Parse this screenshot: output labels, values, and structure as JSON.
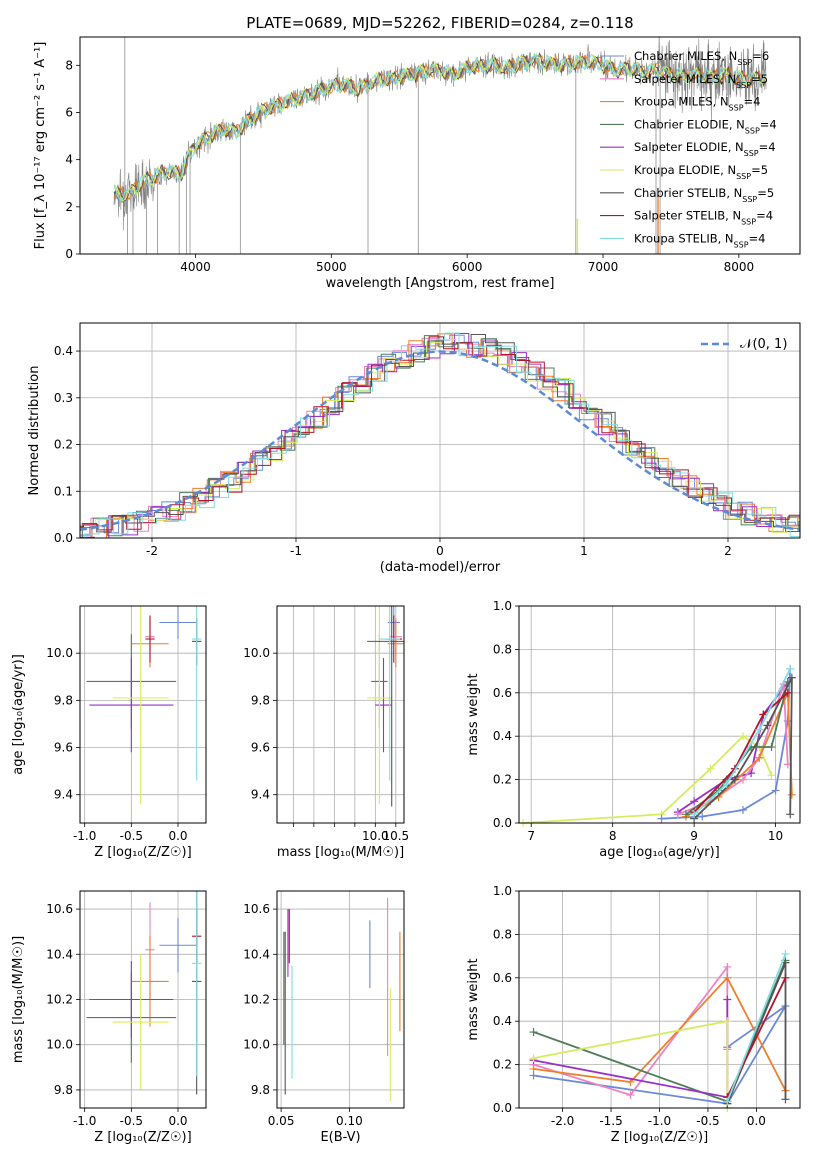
{
  "title": "PLATE=0689, MJD=52262, FIBERID=0284, z=0.118",
  "palette": {
    "Chabrier MILES": "#6a8ad8",
    "Salpeter MILES": "#ee82c0",
    "Kroupa MILES": "#ee7f2c",
    "Chabrier ELODIE": "#4f7d5a",
    "Salpeter ELODIE": "#9a2fc8",
    "Kroupa ELODIE": "#d6ec5f",
    "Chabrier STELIB": "#555555",
    "Salpeter STELIB": "#b0152a",
    "Kroupa STELIB": "#80dce0",
    "normal": "#5b8ad6",
    "data": "#808080"
  },
  "chart_data": [
    {
      "id": "spectrum",
      "type": "line",
      "xlabel": "wavelength [Angstrom, rest frame]",
      "ylabel": "Flux [f_λ 10⁻¹⁷ erg cm⁻² s⁻¹ A⁻¹]",
      "xlim": [
        3150,
        8450
      ],
      "ylim": [
        0,
        9.2
      ],
      "xticks": [
        4000,
        5000,
        6000,
        7000,
        8000
      ],
      "yticks": [
        0,
        2,
        4,
        6,
        8
      ],
      "legend_position": "top-right",
      "legend": [
        {
          "name": "Chabrier MILES",
          "nssp": "=6"
        },
        {
          "name": "Salpeter MILES",
          "nssp": "=5"
        },
        {
          "name": "Kroupa MILES",
          "nssp": "=4"
        },
        {
          "name": "Chabrier ELODIE",
          "nssp": "=4"
        },
        {
          "name": "Salpeter ELODIE",
          "nssp": "=4"
        },
        {
          "name": "Kroupa ELODIE",
          "nssp": "=5"
        },
        {
          "name": "Chabrier STELIB",
          "nssp": "=5"
        },
        {
          "name": "Salpeter STELIB",
          "nssp": "=4"
        },
        {
          "name": "Kroupa STELIB",
          "nssp": "=4"
        }
      ],
      "continuum": [
        [
          3400,
          2.6
        ],
        [
          3500,
          2.5
        ],
        [
          3600,
          3.0
        ],
        [
          3700,
          3.3
        ],
        [
          3800,
          3.5
        ],
        [
          3900,
          3.4
        ],
        [
          3950,
          4.2
        ],
        [
          4000,
          4.6
        ],
        [
          4100,
          5.0
        ],
        [
          4200,
          5.3
        ],
        [
          4300,
          5.2
        ],
        [
          4400,
          5.7
        ],
        [
          4500,
          6.1
        ],
        [
          4600,
          6.3
        ],
        [
          4700,
          6.5
        ],
        [
          4800,
          6.7
        ],
        [
          4900,
          6.9
        ],
        [
          5000,
          7.1
        ],
        [
          5100,
          7.2
        ],
        [
          5200,
          7.0
        ],
        [
          5300,
          7.3
        ],
        [
          5400,
          7.4
        ],
        [
          5500,
          7.5
        ],
        [
          5600,
          7.6
        ],
        [
          5700,
          7.8
        ],
        [
          5800,
          7.8
        ],
        [
          5900,
          7.6
        ],
        [
          6000,
          7.9
        ],
        [
          6100,
          8.0
        ],
        [
          6200,
          8.0
        ],
        [
          6300,
          7.9
        ],
        [
          6400,
          8.1
        ],
        [
          6500,
          8.2
        ],
        [
          6600,
          8.1
        ],
        [
          6700,
          8.0
        ],
        [
          6800,
          8.1
        ],
        [
          6900,
          8.2
        ],
        [
          7000,
          8.0
        ],
        [
          7100,
          7.8
        ],
        [
          7200,
          7.9
        ],
        [
          7300,
          7.7
        ],
        [
          7400,
          7.8
        ],
        [
          7500,
          7.6
        ],
        [
          7600,
          7.5
        ],
        [
          7700,
          7.6
        ],
        [
          7800,
          7.5
        ],
        [
          7900,
          7.6
        ],
        [
          8000,
          7.5
        ],
        [
          8100,
          7.4
        ],
        [
          8200,
          7.5
        ]
      ]
    },
    {
      "id": "residuals",
      "type": "bar",
      "xlabel": "(data-model)/error",
      "ylabel": "Normed distribution",
      "xlim": [
        -2.5,
        2.5
      ],
      "ylim": [
        0,
        0.46
      ],
      "xticks": [
        -2,
        -1,
        0,
        1,
        2
      ],
      "yticks": [
        0.0,
        0.1,
        0.2,
        0.3,
        0.4
      ],
      "legend": [
        {
          "name": "𝒩(0, 1)"
        }
      ],
      "legend_position": "top-right"
    },
    {
      "id": "age-vs-Z",
      "type": "scatter",
      "xlabel": "Z [log₁₀(Z/Z☉)]",
      "ylabel": "age [log₁₀(age/yr)]",
      "xlim": [
        -1.05,
        0.3
      ],
      "ylim": [
        9.28,
        10.2
      ],
      "xticks": [
        -1.0,
        -0.5,
        0.0
      ],
      "yticks": [
        9.4,
        9.6,
        9.8,
        10.0
      ],
      "points": [
        {
          "model": "Chabrier MILES",
          "x": 0.0,
          "xerr": 0.2,
          "y": 10.13,
          "yerr": 0.07
        },
        {
          "model": "Salpeter MILES",
          "x": -0.3,
          "xerr": 0.05,
          "y": 10.07,
          "yerr": 0.08
        },
        {
          "model": "Kroupa MILES",
          "x": -0.3,
          "xerr": 0.2,
          "y": 10.04,
          "yerr": 0.1
        },
        {
          "model": "Chabrier ELODIE",
          "x": -0.5,
          "xerr": 0.48,
          "y": 9.88,
          "yerr": 0.2
        },
        {
          "model": "Salpeter ELODIE",
          "x": -0.5,
          "xerr": 0.45,
          "y": 9.78,
          "yerr": 0.2
        },
        {
          "model": "Kroupa ELODIE",
          "x": -0.4,
          "xerr": 0.3,
          "y": 9.81,
          "yerr": 0.45
        },
        {
          "model": "Chabrier STELIB",
          "x": 0.2,
          "xerr": 0.05,
          "y": 10.05,
          "yerr": 0.1
        },
        {
          "model": "Salpeter STELIB",
          "x": -0.3,
          "xerr": 0.05,
          "y": 10.06,
          "yerr": 0.1
        },
        {
          "model": "Kroupa STELIB",
          "x": 0.2,
          "xerr": 0.05,
          "y": 10.06,
          "yerr": 0.6
        }
      ]
    },
    {
      "id": "age-vs-mass",
      "type": "scatter",
      "xlabel": "mass [log₁₀(M/M☉)]",
      "xlim": [
        7.6,
        10.7
      ],
      "ylim": [
        9.28,
        10.2
      ],
      "xticks": [
        8.0,
        8.5,
        9.0,
        9.5,
        10.0,
        10.5
      ],
      "yticks": [
        9.4,
        9.6,
        9.8,
        10.0
      ],
      "xtick_labels": [
        "10.0",
        "10.5"
      ],
      "xtick_label_values": [
        10.0,
        10.5
      ],
      "points": [
        {
          "model": "Chabrier MILES",
          "x": 10.45,
          "xerr": 0.15,
          "y": 10.13,
          "yerr": 0.07
        },
        {
          "model": "Salpeter MILES",
          "x": 10.5,
          "xerr": 0.15,
          "y": 10.07,
          "yerr": 0.08
        },
        {
          "model": "Kroupa MILES",
          "x": 10.5,
          "xerr": 0.2,
          "y": 10.04,
          "yerr": 0.1
        },
        {
          "model": "Chabrier ELODIE",
          "x": 10.1,
          "xerr": 0.2,
          "y": 9.88,
          "yerr": 0.2
        },
        {
          "model": "Salpeter ELODIE",
          "x": 10.2,
          "xerr": 0.2,
          "y": 9.78,
          "yerr": 0.2
        },
        {
          "model": "Kroupa ELODIE",
          "x": 10.1,
          "xerr": 0.3,
          "y": 9.81,
          "yerr": 0.45
        },
        {
          "model": "Chabrier STELIB",
          "x": 10.4,
          "xerr": 0.6,
          "y": 10.05,
          "yerr": 0.7
        },
        {
          "model": "Salpeter STELIB",
          "x": 10.45,
          "xerr": 0.2,
          "y": 10.06,
          "yerr": 0.1
        },
        {
          "model": "Kroupa STELIB",
          "x": 10.35,
          "xerr": 0.25,
          "y": 10.06,
          "yerr": 0.6
        }
      ]
    },
    {
      "id": "mw-vs-age",
      "type": "line",
      "xlabel": "age [log₁₀(age/yr)]",
      "ylabel": "mass weight",
      "xlim": [
        6.85,
        10.3
      ],
      "ylim": [
        0,
        1.0
      ],
      "xticks": [
        7,
        8,
        9,
        10
      ],
      "yticks": [
        0.0,
        0.2,
        0.4,
        0.6,
        0.8,
        1.0
      ],
      "series": [
        {
          "model": "Kroupa ELODIE",
          "x": [
            6.9,
            8.6,
            9.2,
            9.6,
            9.8,
            9.95
          ],
          "y": [
            0.0,
            0.04,
            0.25,
            0.4,
            0.35,
            0.22
          ]
        },
        {
          "model": "Chabrier MILES",
          "x": [
            8.6,
            9.1,
            9.6,
            10.0,
            10.15,
            10.18
          ],
          "y": [
            0.02,
            0.03,
            0.06,
            0.15,
            0.47,
            0.71
          ]
        },
        {
          "model": "Salpeter ELODIE",
          "x": [
            8.8,
            9.0,
            9.4,
            9.7,
            9.85,
            10.15
          ],
          "y": [
            0.05,
            0.1,
            0.2,
            0.23,
            0.5,
            0.65
          ]
        },
        {
          "model": "Salpeter MILES",
          "x": [
            8.8,
            9.2,
            9.6,
            9.8,
            10.1,
            10.15
          ],
          "y": [
            0.04,
            0.1,
            0.2,
            0.3,
            0.64,
            0.27
          ]
        },
        {
          "model": "Kroupa MILES",
          "x": [
            8.9,
            9.3,
            9.8,
            10.15,
            10.2
          ],
          "y": [
            0.03,
            0.12,
            0.3,
            0.6,
            0.13
          ]
        },
        {
          "model": "Chabrier ELODIE",
          "x": [
            8.9,
            9.3,
            9.7,
            9.95,
            10.15
          ],
          "y": [
            0.04,
            0.15,
            0.35,
            0.35,
            0.65
          ]
        },
        {
          "model": "Chabrier STELIB",
          "x": [
            9.0,
            9.5,
            9.9,
            10.2,
            10.18
          ],
          "y": [
            0.02,
            0.2,
            0.45,
            0.67,
            0.04
          ]
        },
        {
          "model": "Salpeter STELIB",
          "x": [
            9.0,
            9.5,
            9.85,
            10.15
          ],
          "y": [
            0.05,
            0.25,
            0.5,
            0.6
          ]
        },
        {
          "model": "Kroupa STELIB",
          "x": [
            9.0,
            9.4,
            9.8,
            10.18
          ],
          "y": [
            0.04,
            0.18,
            0.43,
            0.71
          ]
        }
      ]
    },
    {
      "id": "mass-vs-Z",
      "type": "scatter",
      "xlabel": "Z [log₁₀(Z/Z☉)]",
      "ylabel": "mass [log₁₀(M/M☉)]",
      "xlim": [
        -1.05,
        0.3
      ],
      "ylim": [
        9.72,
        10.68
      ],
      "xticks": [
        -1.0,
        -0.5,
        0.0
      ],
      "yticks": [
        9.8,
        10.0,
        10.2,
        10.4,
        10.6
      ],
      "points": [
        {
          "model": "Chabrier MILES",
          "x": 0.0,
          "xerr": 0.2,
          "y": 10.44,
          "yerr": 0.12
        },
        {
          "model": "Salpeter MILES",
          "x": -0.3,
          "xerr": 0.05,
          "y": 10.42,
          "yerr": 0.21
        },
        {
          "model": "Kroupa MILES",
          "x": -0.3,
          "xerr": 0.2,
          "y": 10.28,
          "yerr": 0.2
        },
        {
          "model": "Chabrier ELODIE",
          "x": -0.5,
          "xerr": 0.48,
          "y": 10.12,
          "yerr": 0.2
        },
        {
          "model": "Salpeter ELODIE",
          "x": -0.5,
          "xerr": 0.45,
          "y": 10.2,
          "yerr": 0.17
        },
        {
          "model": "Kroupa ELODIE",
          "x": -0.4,
          "xerr": 0.3,
          "y": 10.1,
          "yerr": 0.3
        },
        {
          "model": "Chabrier STELIB",
          "x": 0.2,
          "xerr": 0.05,
          "y": 10.28,
          "yerr": 0.5
        },
        {
          "model": "Salpeter STELIB",
          "x": 0.2,
          "xerr": 0.05,
          "y": 10.48,
          "yerr": 0.12
        },
        {
          "model": "Kroupa STELIB",
          "x": 0.2,
          "xerr": 0.05,
          "y": 10.36,
          "yerr": 0.5
        }
      ]
    },
    {
      "id": "mass-vs-ebv",
      "type": "scatter",
      "xlabel": "E(B-V)",
      "xlim": [
        0.047,
        0.14
      ],
      "ylim": [
        9.72,
        10.68
      ],
      "xticks": [
        0.05,
        0.1
      ],
      "yticks": [
        9.8,
        10.0,
        10.2,
        10.4,
        10.6
      ],
      "points": [
        {
          "model": "Chabrier MILES",
          "x": 0.115,
          "y": 10.4,
          "yerr": 0.15
        },
        {
          "model": "Salpeter MILES",
          "x": 0.128,
          "y": 10.3,
          "yerr": 0.35
        },
        {
          "model": "Kroupa MILES",
          "x": 0.137,
          "y": 10.28,
          "yerr": 0.22
        },
        {
          "model": "Chabrier ELODIE",
          "x": 0.052,
          "y": 10.25,
          "yerr": 0.25
        },
        {
          "model": "Salpeter ELODIE",
          "x": 0.055,
          "y": 10.45,
          "yerr": 0.15
        },
        {
          "model": "Kroupa ELODIE",
          "x": 0.13,
          "y": 10.0,
          "yerr": 0.25
        },
        {
          "model": "Chabrier STELIB",
          "x": 0.053,
          "y": 10.14,
          "yerr": 0.36
        },
        {
          "model": "Salpeter STELIB",
          "x": 0.056,
          "y": 10.48,
          "yerr": 0.12
        },
        {
          "model": "Kroupa STELIB",
          "x": 0.058,
          "y": 10.1,
          "yerr": 0.25
        }
      ]
    },
    {
      "id": "mw-vs-Z",
      "type": "line",
      "xlabel": "Z [log₁₀(Z/Z☉)]",
      "ylabel": "mass weight",
      "xlim": [
        -2.45,
        0.45
      ],
      "ylim": [
        0,
        1.0
      ],
      "xticks": [
        -2.0,
        -1.5,
        -1.0,
        -0.5,
        0.0
      ],
      "yticks": [
        0.0,
        0.2,
        0.4,
        0.6,
        0.8,
        1.0
      ],
      "series": [
        {
          "model": "Chabrier MILES",
          "x": [
            -2.3,
            -0.3,
            0.3,
            -0.3
          ],
          "y": [
            0.15,
            0.02,
            0.47,
            0.28
          ]
        },
        {
          "model": "Salpeter MILES",
          "x": [
            -2.3,
            -1.3,
            -0.3,
            -0.3
          ],
          "y": [
            0.2,
            0.06,
            0.65,
            0.27
          ]
        },
        {
          "model": "Kroupa MILES",
          "x": [
            -2.3,
            -1.3,
            -0.3,
            0.3
          ],
          "y": [
            0.18,
            0.12,
            0.6,
            0.08
          ]
        },
        {
          "model": "Chabrier ELODIE",
          "x": [
            -2.3,
            -0.3,
            0.3
          ],
          "y": [
            0.35,
            0.03,
            0.68
          ]
        },
        {
          "model": "Salpeter ELODIE",
          "x": [
            -2.3,
            -0.3,
            -0.3
          ],
          "y": [
            0.22,
            0.05,
            0.5
          ]
        },
        {
          "model": "Kroupa ELODIE",
          "x": [
            -2.3,
            -0.3,
            -0.3
          ],
          "y": [
            0.23,
            0.4,
            0.0
          ]
        },
        {
          "model": "Chabrier STELIB",
          "x": [
            -0.3,
            0.3,
            0.3
          ],
          "y": [
            0.02,
            0.67,
            0.04
          ]
        },
        {
          "model": "Salpeter STELIB",
          "x": [
            -0.3,
            0.3
          ],
          "y": [
            0.05,
            0.6
          ]
        },
        {
          "model": "Kroupa STELIB",
          "x": [
            -0.3,
            0.3
          ],
          "y": [
            0.03,
            0.71
          ]
        }
      ]
    }
  ]
}
